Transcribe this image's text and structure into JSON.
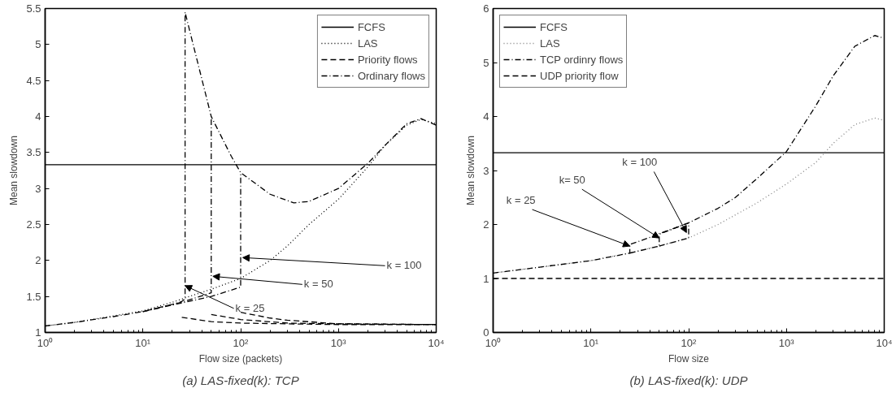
{
  "chart_data": [
    {
      "type": "line",
      "title": "(a) LAS-fixed(k): TCP",
      "xlabel": "Flow size (packets)",
      "ylabel": "Mean slowdown",
      "log": "x",
      "grid": false,
      "legend": "top right",
      "xlim": [
        1,
        10000
      ],
      "xticks": [
        {
          "value": 1,
          "label": "10⁰"
        },
        {
          "value": 10,
          "label": "10¹"
        },
        {
          "value": 100,
          "label": "10²"
        },
        {
          "value": 1000,
          "label": "10³"
        },
        {
          "value": 10000,
          "label": "10⁴"
        }
      ],
      "ylim": [
        1,
        5.5
      ],
      "yticks": [
        1,
        1.5,
        2,
        2.5,
        3,
        3.5,
        4,
        4.5,
        5,
        5.5
      ],
      "series": [
        {
          "name": "FCFS",
          "color": "#000000",
          "line_style": "solid",
          "x": [
            1,
            10000
          ],
          "values": [
            3.33,
            3.33
          ]
        },
        {
          "name": "LAS",
          "color": "#000000",
          "line_style": "dotted",
          "x": [
            1,
            2,
            5,
            10,
            20,
            30,
            50,
            100,
            200,
            300,
            500,
            1000,
            2000,
            3000,
            5000,
            7000,
            10000
          ],
          "values": [
            1.09,
            1.14,
            1.23,
            1.3,
            1.42,
            1.5,
            1.6,
            1.75,
            2.0,
            2.2,
            2.5,
            2.85,
            3.3,
            3.6,
            3.88,
            3.96,
            3.9
          ]
        },
        {
          "name": "Priority flows",
          "color": "#000000",
          "line_style": "dashed",
          "x": [
            25,
            50,
            100,
            300,
            1000,
            10000
          ],
          "values": [
            1.21,
            1.15,
            1.13,
            1.12,
            1.11,
            1.11
          ]
        },
        {
          "color": "#000000",
          "line_style": "dashed",
          "x": [
            50,
            100,
            300,
            1000,
            10000
          ],
          "values": [
            1.25,
            1.18,
            1.13,
            1.12,
            1.11
          ]
        },
        {
          "color": "#000000",
          "line_style": "dashed",
          "x": [
            100,
            200,
            300,
            1000,
            10000
          ],
          "values": [
            1.28,
            1.2,
            1.17,
            1.12,
            1.11
          ]
        },
        {
          "name": "Ordinary flows",
          "color": "#000000",
          "line_style": "dashdot",
          "x": [
            1,
            2,
            5,
            10,
            20,
            25,
            27,
            27,
            30,
            50,
            80,
            100,
            200,
            350,
            500,
            1000,
            2000,
            3000,
            5000,
            7000,
            10000
          ],
          "values": [
            1.09,
            1.14,
            1.22,
            1.29,
            1.39,
            1.43,
            1.47,
            5.45,
            5.2,
            4.0,
            3.45,
            3.22,
            2.92,
            2.8,
            2.82,
            3.0,
            3.35,
            3.6,
            3.9,
            3.97,
            3.88
          ]
        },
        {
          "color": "#000000",
          "line_style": "dashdot",
          "x": [
            10,
            25,
            50,
            50
          ],
          "values": [
            1.29,
            1.42,
            1.55,
            4.0
          ]
        },
        {
          "color": "#000000",
          "line_style": "dashdot",
          "x": [
            10,
            50,
            100,
            100
          ],
          "values": [
            1.29,
            1.5,
            1.63,
            3.22
          ]
        }
      ],
      "annotations": [
        {
          "text": "k = 25",
          "x": 27,
          "y": 1.65
        },
        {
          "text": "k = 50",
          "x": 52,
          "y": 1.78
        },
        {
          "text": "k = 100",
          "x": 105,
          "y": 2.04
        }
      ]
    },
    {
      "type": "line",
      "title": "(b) LAS-fixed(k): UDP",
      "xlabel": "Flow size",
      "ylabel": "Mean slowdown",
      "log": "x",
      "grid": false,
      "legend": "top left",
      "xlim": [
        1,
        10000
      ],
      "xticks": [
        {
          "value": 1,
          "label": "10⁰"
        },
        {
          "value": 10,
          "label": "10¹"
        },
        {
          "value": 100,
          "label": "10²"
        },
        {
          "value": 1000,
          "label": "10³"
        },
        {
          "value": 10000,
          "label": "10⁴"
        }
      ],
      "ylim": [
        0,
        6
      ],
      "yticks": [
        0,
        1,
        2,
        3,
        4,
        5,
        6
      ],
      "series": [
        {
          "name": "FCFS",
          "color": "#000000",
          "line_style": "solid",
          "x": [
            1,
            10000
          ],
          "values": [
            3.33,
            3.33
          ]
        },
        {
          "name": "LAS",
          "color": "#808080",
          "line_style": "dotted",
          "x": [
            1,
            10,
            25,
            50,
            100,
            200,
            500,
            1000,
            2000,
            3000,
            5000,
            8000,
            10000
          ],
          "values": [
            1.1,
            1.33,
            1.47,
            1.6,
            1.75,
            2.0,
            2.4,
            2.75,
            3.15,
            3.5,
            3.85,
            3.97,
            3.93
          ]
        },
        {
          "name": "TCP ordinry flows",
          "color": "#000000",
          "line_style": "dashdot",
          "x": [
            1,
            10,
            25,
            25,
            50,
            100,
            200,
            300,
            500,
            1000,
            2000,
            3000,
            5000,
            8000,
            10000
          ],
          "values": [
            1.1,
            1.33,
            1.47,
            1.63,
            1.82,
            2.03,
            2.3,
            2.5,
            2.85,
            3.35,
            4.2,
            4.75,
            5.3,
            5.5,
            5.45
          ]
        },
        {
          "color": "#000000",
          "line_style": "dashdot",
          "x": [
            25,
            50,
            50,
            100
          ],
          "values": [
            1.47,
            1.6,
            1.83,
            2.03
          ]
        },
        {
          "color": "#000000",
          "line_style": "dashdot",
          "x": [
            50,
            100,
            100
          ],
          "values": [
            1.6,
            1.75,
            2.03
          ]
        },
        {
          "name": "UDP priority flow",
          "color": "#000000",
          "line_style": "dashed",
          "x": [
            1,
            10000
          ],
          "values": [
            1.0,
            1.0
          ]
        }
      ],
      "annotations": [
        {
          "text": "k = 25",
          "x": 25,
          "y": 1.6
        },
        {
          "text": "k= 50",
          "x": 50,
          "y": 1.75
        },
        {
          "text": "k = 100",
          "x": 95,
          "y": 1.85
        }
      ]
    }
  ]
}
